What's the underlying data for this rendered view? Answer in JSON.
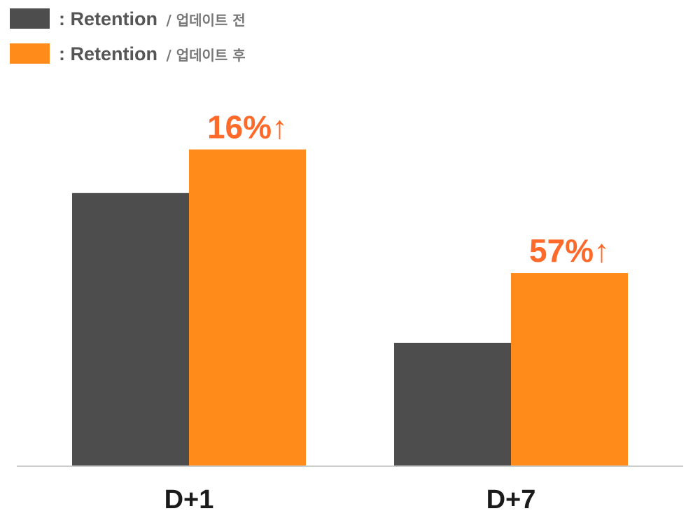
{
  "chart_data": {
    "type": "bar",
    "categories": [
      "D+1",
      "D+7"
    ],
    "series": [
      {
        "name": ": Retention / 업데이트 전",
        "legend_main": ": Retention",
        "legend_sub": "/ 업데이트 전",
        "color": "#4d4d4d",
        "values": [
          100,
          45
        ]
      },
      {
        "name": ": Retention / 업데이트 후",
        "legend_main": ": Retention",
        "legend_sub": "/ 업데이트 후",
        "color": "#ff8c1a",
        "values": [
          116,
          70.65
        ]
      }
    ],
    "annotations": [
      {
        "category": "D+1",
        "series": 1,
        "text": "16%",
        "arrow": "↑"
      },
      {
        "category": "D+7",
        "series": 1,
        "text": "57%",
        "arrow": "↑"
      }
    ],
    "annotation_color": "#ff6a2b",
    "ylim": [
      0,
      120
    ],
    "grid": false,
    "legend_position": "top-left",
    "title": "",
    "xlabel": "",
    "ylabel": ""
  }
}
